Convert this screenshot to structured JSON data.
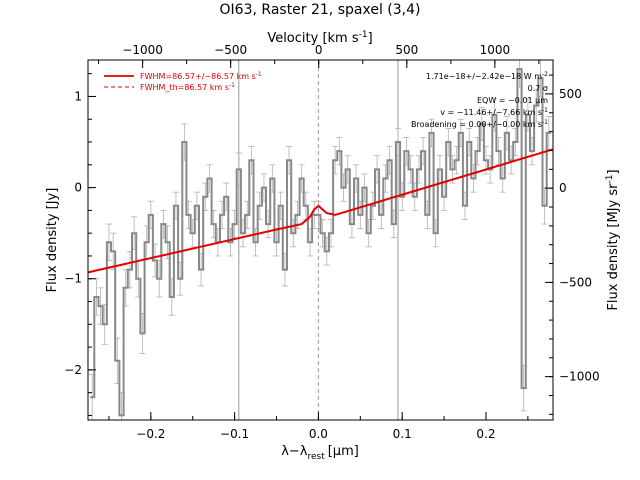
{
  "chart_data": {
    "type": "line",
    "title": "OI63, Raster 21, spaxel (3,4)",
    "xlabel": "λ−λ",
    "xlabel_sub": "rest",
    "xlabel_unit": "[μm]",
    "ylabel": "Flux density [Jy]",
    "top_axis_label": "Velocity [km s",
    "top_axis_label_exp": "-1",
    "top_axis_label_end": "]",
    "right_axis_label": "Flux density [MJy sr",
    "right_axis_label_exp": "-1",
    "right_axis_label_end": "]",
    "xlim": [
      -0.275,
      0.28
    ],
    "ylim": [
      -2.55,
      1.4
    ],
    "right_ylim": [
      -1230,
      680
    ],
    "top_xlim": [
      -1310,
      1330
    ],
    "x_ticks": [
      -0.2,
      -0.1,
      0.0,
      0.1,
      0.2
    ],
    "x_tick_labels": [
      "−0.2",
      "−0.1",
      "0.0",
      "0.1",
      "0.2"
    ],
    "y_ticks": [
      -2,
      -1,
      0,
      1
    ],
    "y_tick_labels": [
      "−2",
      "−1",
      "0",
      "1"
    ],
    "top_ticks": [
      -1000,
      -500,
      0,
      500,
      1000
    ],
    "top_tick_labels": [
      "−1000",
      "−500",
      "0",
      "500",
      "1000"
    ],
    "right_ticks": [
      -1000,
      -500,
      0,
      500
    ],
    "right_tick_labels": [
      "−1000",
      "−500",
      "0",
      "500"
    ],
    "vertical_lines": [
      -0.095,
      0.0,
      0.095
    ],
    "legend": [
      {
        "label": "FWHM=86.57+/−86.57 km s",
        "exp": "-1",
        "color": "#e00000",
        "style": "solid"
      },
      {
        "label": "FWHM_th=86.57 km s",
        "exp": "-1",
        "color": "#e00000",
        "style": "dashed"
      }
    ],
    "legend_position": "top-left",
    "annotations": [
      "1.71e−18+/−2.42e−18 W m",
      "0.7 σ",
      "EQW = −0.01 μm",
      "v = −11.46+/−7.66 km s",
      "Broadening = 0.00+/−0.00 km s"
    ],
    "annotation_exps": [
      "-2",
      "",
      "",
      "-1",
      "-1"
    ],
    "colors": {
      "data": "#888888",
      "errors": "#b0b0b0",
      "fit": "#e00000",
      "grid": "#999999"
    },
    "spectrum": {
      "name": "",
      "x": [
        -0.27,
        -0.265,
        -0.26,
        -0.255,
        -0.25,
        -0.245,
        -0.24,
        -0.235,
        -0.23,
        -0.225,
        -0.22,
        -0.215,
        -0.21,
        -0.205,
        -0.2,
        -0.195,
        -0.19,
        -0.185,
        -0.18,
        -0.175,
        -0.17,
        -0.165,
        -0.16,
        -0.155,
        -0.15,
        -0.145,
        -0.14,
        -0.135,
        -0.13,
        -0.125,
        -0.12,
        -0.115,
        -0.11,
        -0.105,
        -0.1,
        -0.095,
        -0.09,
        -0.085,
        -0.08,
        -0.075,
        -0.07,
        -0.065,
        -0.06,
        -0.055,
        -0.05,
        -0.045,
        -0.04,
        -0.035,
        -0.03,
        -0.025,
        -0.02,
        -0.015,
        -0.01,
        -0.005,
        0.0,
        0.005,
        0.01,
        0.015,
        0.02,
        0.025,
        0.03,
        0.035,
        0.04,
        0.045,
        0.05,
        0.055,
        0.06,
        0.065,
        0.07,
        0.075,
        0.08,
        0.085,
        0.09,
        0.095,
        0.1,
        0.105,
        0.11,
        0.115,
        0.12,
        0.125,
        0.13,
        0.135,
        0.14,
        0.145,
        0.15,
        0.155,
        0.16,
        0.165,
        0.17,
        0.175,
        0.18,
        0.185,
        0.19,
        0.195,
        0.2,
        0.205,
        0.21,
        0.215,
        0.22,
        0.225,
        0.23,
        0.235,
        0.24,
        0.245,
        0.25,
        0.255,
        0.26,
        0.265,
        0.27,
        0.275
      ],
      "y": [
        -2.3,
        -1.2,
        -1.3,
        -1.5,
        -0.6,
        -0.7,
        -1.9,
        -2.5,
        -1.1,
        -0.9,
        -0.5,
        -1.0,
        -1.6,
        -0.6,
        -0.3,
        -0.8,
        -1.0,
        -0.4,
        -0.6,
        -1.2,
        -0.2,
        -1.0,
        0.5,
        -0.3,
        -0.5,
        -0.2,
        -0.9,
        -0.1,
        0.1,
        -0.4,
        -0.6,
        -0.3,
        -0.1,
        -0.6,
        -0.4,
        0.2,
        -0.5,
        -0.3,
        0.3,
        -0.6,
        -0.2,
        0.0,
        -0.4,
        0.1,
        -0.6,
        -0.2,
        -0.9,
        0.3,
        -0.5,
        -0.3,
        0.1,
        -0.2,
        -0.6,
        -0.3,
        -0.3,
        -0.5,
        -0.7,
        -0.5,
        0.3,
        0.4,
        0.0,
        0.2,
        -0.4,
        0.1,
        -0.3,
        0.0,
        -0.5,
        -0.2,
        0.2,
        -0.3,
        0.1,
        0.3,
        -0.4,
        0.5,
        -0.1,
        0.4,
        0.2,
        -0.1,
        0.2,
        0.4,
        -0.3,
        0.6,
        -0.5,
        0.2,
        -0.1,
        0.5,
        0.2,
        0.3,
        0.6,
        -0.2,
        0.5,
        0.1,
        0.4,
        0.7,
        0.3,
        0.2,
        0.8,
        0.4,
        0.1,
        0.6,
        0.3,
        0.5,
        1.3,
        -2.2,
        0.8,
        0.4,
        0.9,
        1.2,
        -0.2,
        0.6
      ],
      "err": [
        0.25,
        0.2,
        0.2,
        0.22,
        0.2,
        0.2,
        0.25,
        0.25,
        0.2,
        0.2,
        0.18,
        0.2,
        0.22,
        0.18,
        0.15,
        0.18,
        0.2,
        0.15,
        0.18,
        0.2,
        0.15,
        0.18,
        0.2,
        0.15,
        0.15,
        0.15,
        0.18,
        0.15,
        0.15,
        0.15,
        0.15,
        0.15,
        0.15,
        0.15,
        0.15,
        0.18,
        0.15,
        0.15,
        0.15,
        0.15,
        0.15,
        0.15,
        0.15,
        0.15,
        0.15,
        0.15,
        0.18,
        0.15,
        0.15,
        0.15,
        0.15,
        0.15,
        0.15,
        0.15,
        0.15,
        0.15,
        0.15,
        0.15,
        0.15,
        0.15,
        0.15,
        0.15,
        0.15,
        0.15,
        0.15,
        0.15,
        0.15,
        0.15,
        0.15,
        0.15,
        0.15,
        0.15,
        0.15,
        0.15,
        0.15,
        0.15,
        0.15,
        0.15,
        0.15,
        0.15,
        0.15,
        0.15,
        0.15,
        0.15,
        0.15,
        0.15,
        0.15,
        0.15,
        0.15,
        0.15,
        0.15,
        0.15,
        0.15,
        0.18,
        0.15,
        0.15,
        0.18,
        0.15,
        0.15,
        0.18,
        0.15,
        0.15,
        0.2,
        0.25,
        0.18,
        0.15,
        0.18,
        0.2,
        0.2,
        0.18
      ]
    },
    "fit": {
      "x": [
        -0.275,
        -0.05,
        -0.02,
        -0.01,
        -0.005,
        0.0,
        0.005,
        0.01,
        0.02,
        0.28
      ],
      "y": [
        -0.93,
        -0.46,
        -0.4,
        -0.32,
        -0.24,
        -0.2,
        -0.24,
        -0.28,
        -0.3,
        0.42
      ]
    }
  }
}
